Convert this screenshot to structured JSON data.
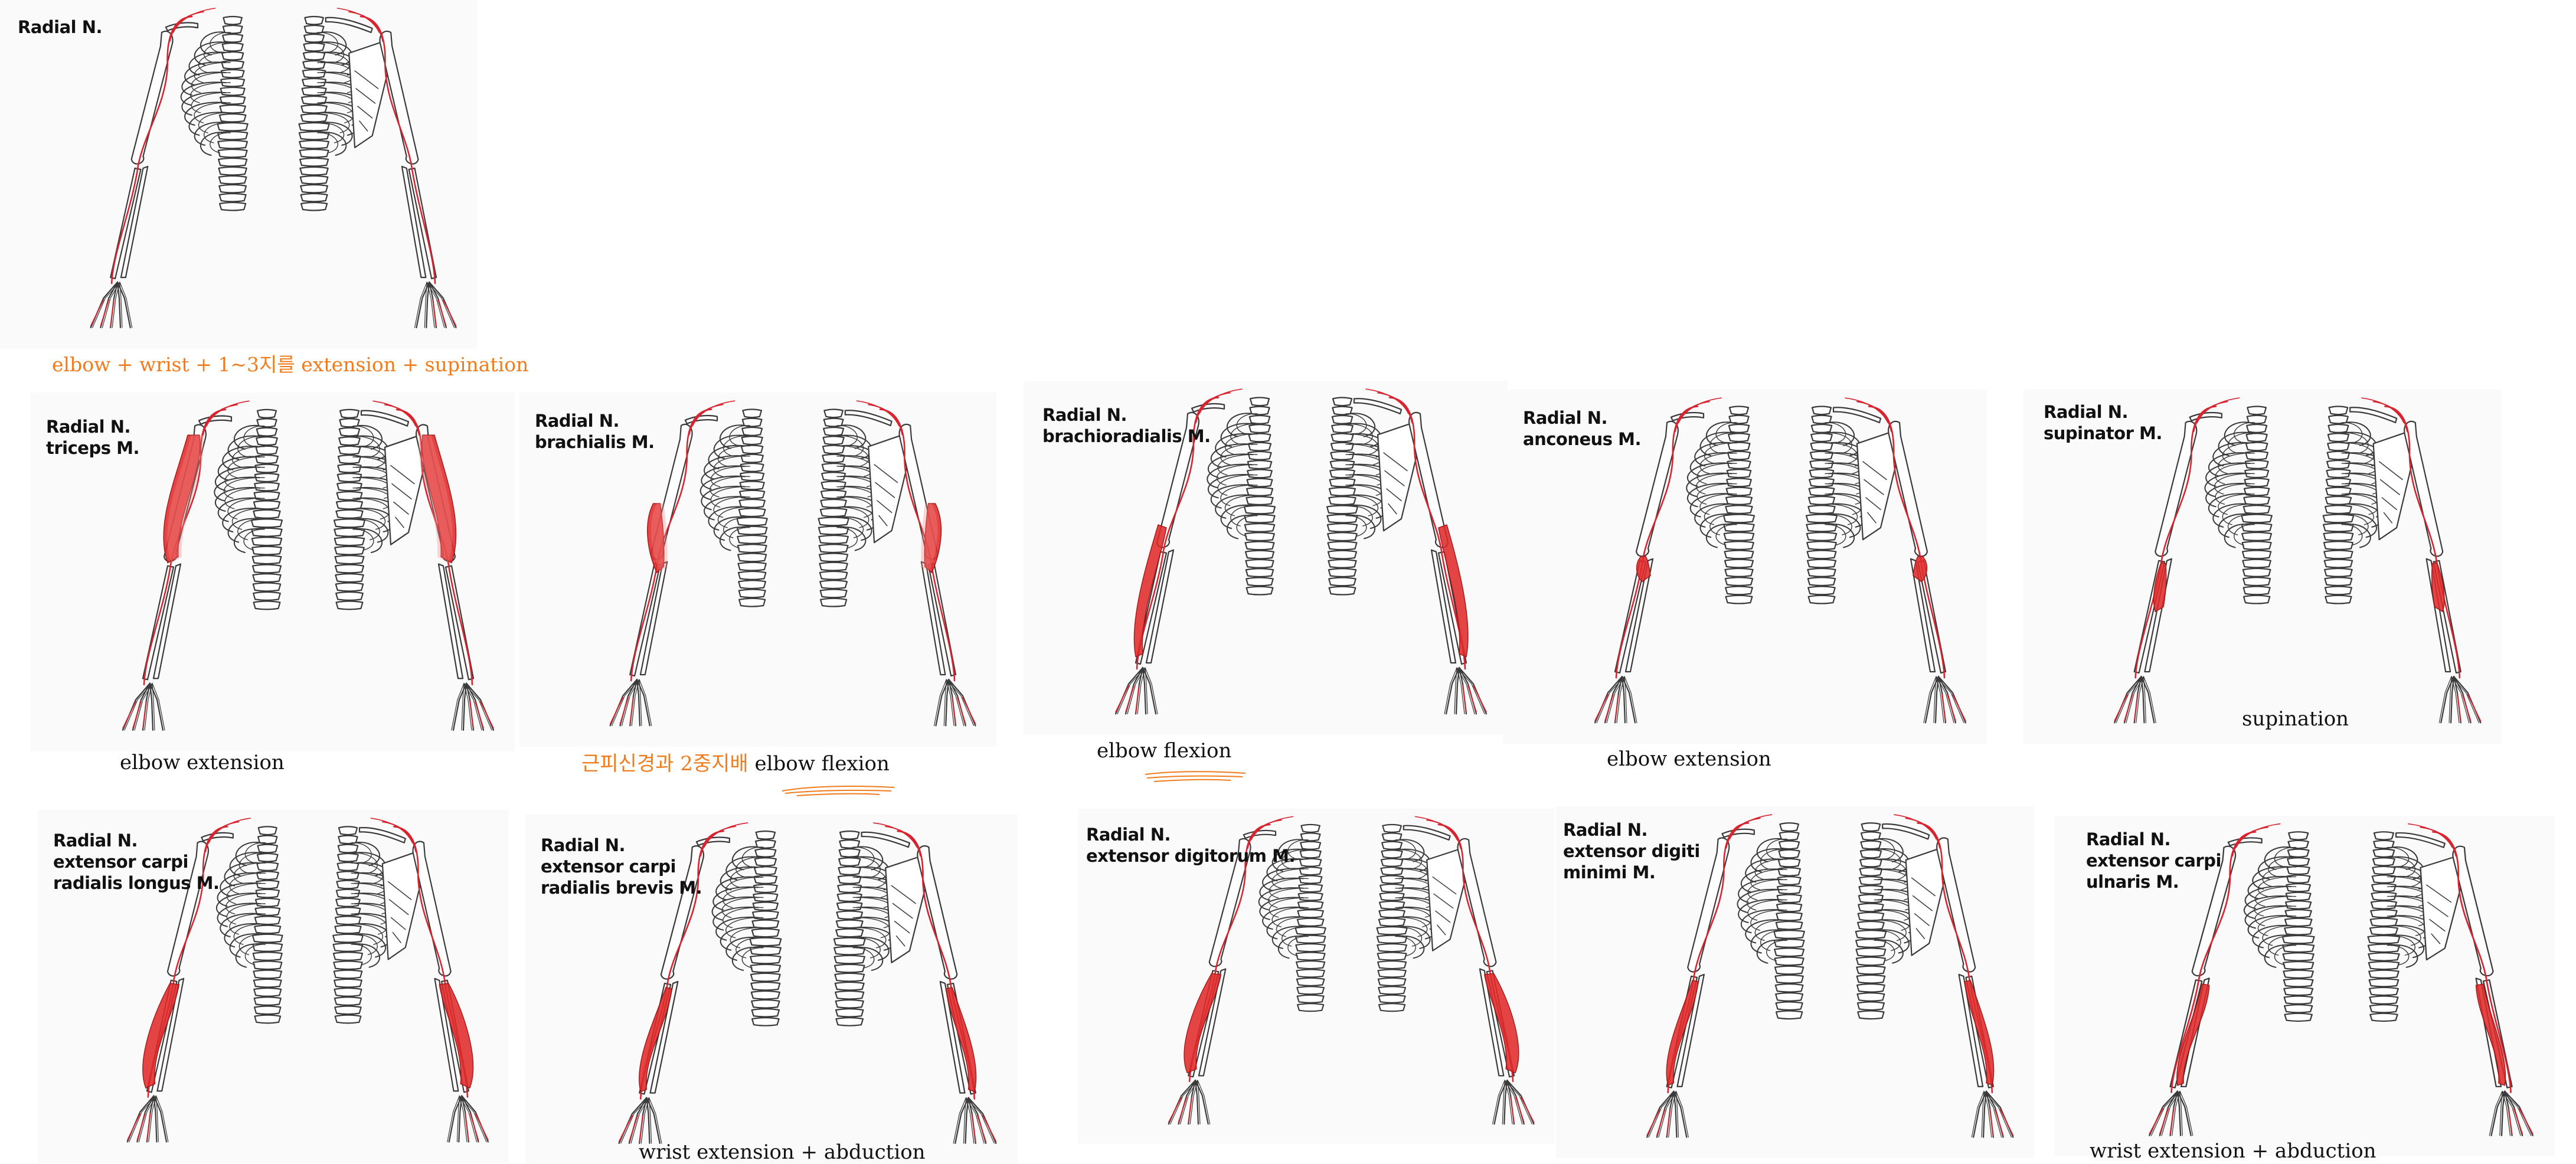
{
  "colors": {
    "nerve": "#d9232e",
    "muscle": "#e02a2a",
    "muscle_light": "#f08a8a",
    "bone_stroke": "#3a3a3a",
    "panel_bg": "#fafafa",
    "note_orange": "#f07c1e"
  },
  "overview": {
    "label": "Radial N.",
    "summary": "elbow + wrist + 1~3지를 extension + supination"
  },
  "panels": [
    {
      "id": "triceps",
      "label_lines": [
        "Radial N.",
        "triceps M."
      ],
      "highlight": "upper-posterior",
      "caption": "elbow extension",
      "note": ""
    },
    {
      "id": "brachialis",
      "label_lines": [
        "Radial N.",
        "brachialis M."
      ],
      "highlight": "lower-upperarm",
      "caption": "elbow flexion",
      "note": "근피신경과 2중지배"
    },
    {
      "id": "brachioradialis",
      "label_lines": [
        "Radial N.",
        "brachioradialis M."
      ],
      "highlight": "forearm-long",
      "caption": "elbow flexion",
      "note": ""
    },
    {
      "id": "anconeus",
      "label_lines": [
        "Radial N.",
        "anconeus M."
      ],
      "highlight": "elbow-small",
      "caption": "elbow extension",
      "note": ""
    },
    {
      "id": "supinator",
      "label_lines": [
        "Radial N.",
        "supinator M."
      ],
      "highlight": "upper-forearm",
      "caption": "supination",
      "note": ""
    },
    {
      "id": "ecrl",
      "label_lines": [
        "Radial N.",
        "extensor carpi",
        "radialis longus M."
      ],
      "highlight": "forearm-broad",
      "caption": "",
      "note": ""
    },
    {
      "id": "ecrb",
      "label_lines": [
        "Radial N.",
        "extensor carpi",
        "radialis brevis M."
      ],
      "highlight": "forearm-mid",
      "caption": "wrist extension + abduction",
      "note": ""
    },
    {
      "id": "edc",
      "label_lines": [
        "Radial N.",
        "extensor digitorum M."
      ],
      "highlight": "forearm-broad",
      "caption": "",
      "note": ""
    },
    {
      "id": "edm",
      "label_lines": [
        "Radial N.",
        "extensor digiti",
        "minimi M."
      ],
      "highlight": "forearm-mid",
      "caption": "",
      "note": ""
    },
    {
      "id": "ecu",
      "label_lines": [
        "Radial N.",
        "extensor carpi",
        "ulnaris M."
      ],
      "highlight": "forearm-thin",
      "caption": "wrist extension + abduction",
      "note": ""
    }
  ]
}
